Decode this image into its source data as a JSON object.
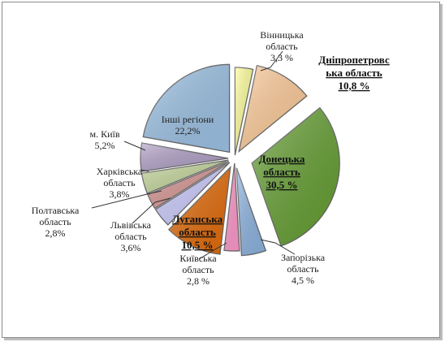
{
  "chart_data": {
    "type": "pie",
    "title": "",
    "slices": [
      {
        "label_lines": [
          "Вінницька",
          "область",
          "3,3 %"
        ],
        "value": 3.3,
        "color": "#FFFF99",
        "emphasis": false
      },
      {
        "label_lines": [
          "Дніпропетровс",
          "ька область",
          "10,8 %"
        ],
        "value": 10.8,
        "color": "#FFCC99",
        "emphasis": true
      },
      {
        "label_lines": [
          "Донецька",
          "область",
          "30,5 %"
        ],
        "value": 30.5,
        "color": "#66A033",
        "emphasis": true
      },
      {
        "label_lines": [
          "Запорізька",
          "область",
          "4,5 %"
        ],
        "value": 4.5,
        "color": "#8DB4E2",
        "emphasis": false
      },
      {
        "label_lines": [
          "Київська",
          "область",
          "2,8 %"
        ],
        "value": 2.8,
        "color": "#FF99CC",
        "emphasis": false
      },
      {
        "label_lines": [
          "Луганська",
          "область",
          "10,5 %"
        ],
        "value": 10.5,
        "color": "#E46C0A",
        "emphasis": true
      },
      {
        "label_lines": [
          "Львівська",
          "область",
          "3,6%"
        ],
        "value": 3.6,
        "color": "#CCCCFF",
        "emphasis": false
      },
      {
        "label_lines": [
          "Полтавська",
          "область",
          "2,8%"
        ],
        "value": 2.8,
        "color": "#D99694",
        "emphasis": false
      },
      {
        "label_lines": [
          "Харківська",
          "область",
          "3,8%"
        ],
        "value": 3.8,
        "color": "#C4D79B",
        "emphasis": false
      },
      {
        "label_lines": [
          "м. Київ",
          "5,2%"
        ],
        "value": 5.2,
        "color": "#B1A0C7",
        "emphasis": false
      },
      {
        "label_lines": [
          "Інші регіони",
          "22,2%"
        ],
        "value": 22.2,
        "color": "#9DC3E6",
        "emphasis": false
      }
    ],
    "legend": "none",
    "start_angle_deg": 0,
    "direction": "clockwise",
    "exploded": true
  }
}
